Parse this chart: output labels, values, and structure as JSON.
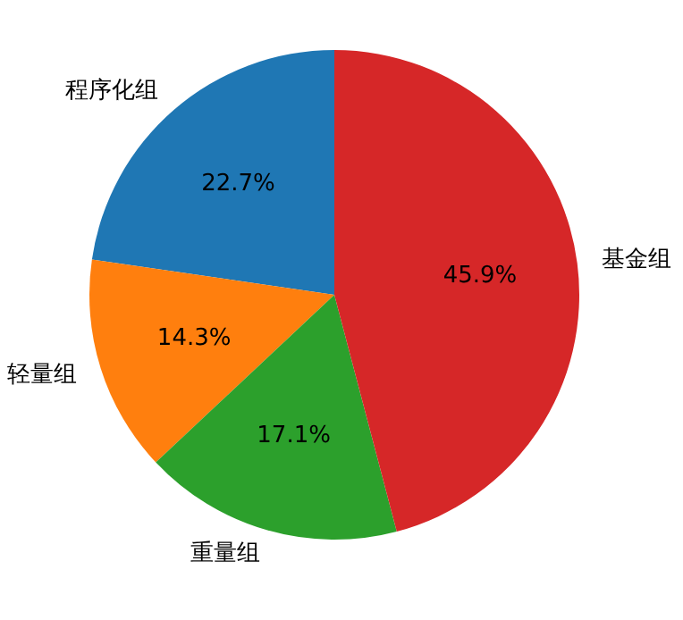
{
  "chart_data": {
    "type": "pie",
    "categories": [
      "程序化组",
      "轻量组",
      "重量组",
      "基金组"
    ],
    "values": [
      22.7,
      14.3,
      17.1,
      45.9
    ],
    "colors": [
      "#1f77b4",
      "#ff7f0e",
      "#2ca02c",
      "#d62728"
    ],
    "value_labels": [
      "22.7%",
      "14.3%",
      "17.1%",
      "45.9%"
    ]
  }
}
